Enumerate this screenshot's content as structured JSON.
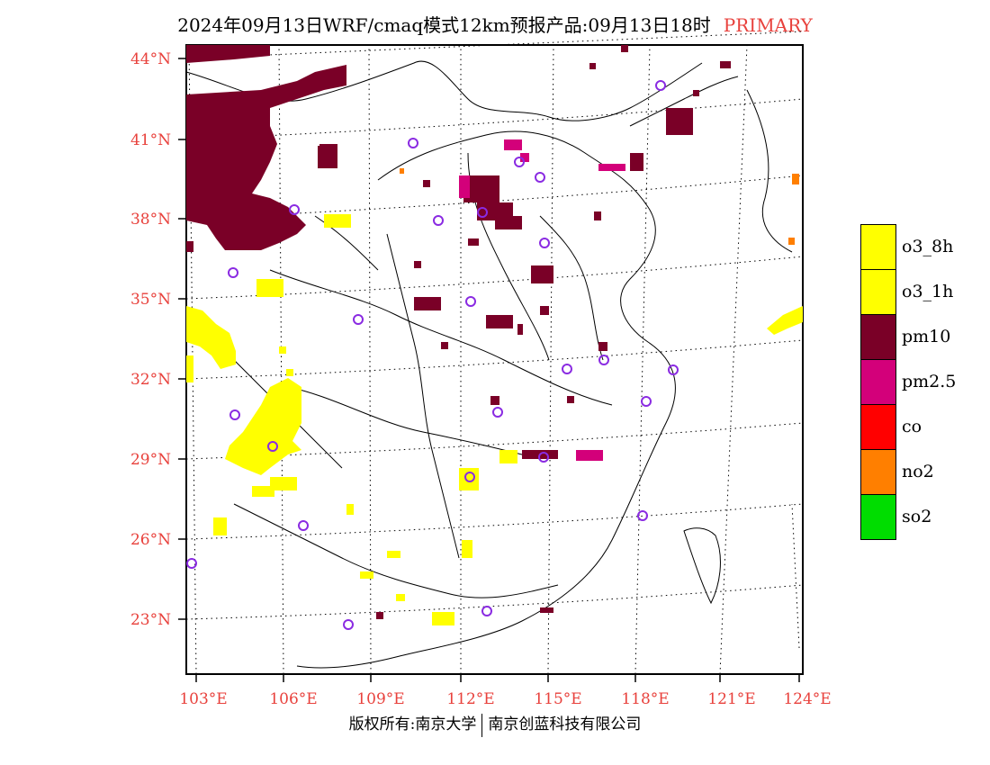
{
  "title": {
    "main": "2024年09月13日WRF/cmaq模式12km预报产品:09月13日18时",
    "primary": "PRIMARY"
  },
  "axes": {
    "lat_labels": [
      "44°N",
      "41°N",
      "38°N",
      "35°N",
      "32°N",
      "29°N",
      "26°N",
      "23°N"
    ],
    "lon_labels": [
      "103°E",
      "106°E",
      "109°E",
      "112°E",
      "115°E",
      "118°E",
      "121°E",
      "124°E"
    ]
  },
  "legend": [
    {
      "label": "o3_8h",
      "color": "#ffff00"
    },
    {
      "label": "o3_1h",
      "color": "#ffff00"
    },
    {
      "label": "pm10",
      "color": "#7a0027"
    },
    {
      "label": "pm2.5",
      "color": "#d3007a"
    },
    {
      "label": "co",
      "color": "#ff0000"
    },
    {
      "label": "no2",
      "color": "#ff7f00"
    },
    {
      "label": "so2",
      "color": "#00dd00"
    }
  ],
  "footer": {
    "left": "版权所有:南京大学",
    "right": "南京创蓝科技有限公司"
  },
  "station_marker_color": "#8a2be2"
}
